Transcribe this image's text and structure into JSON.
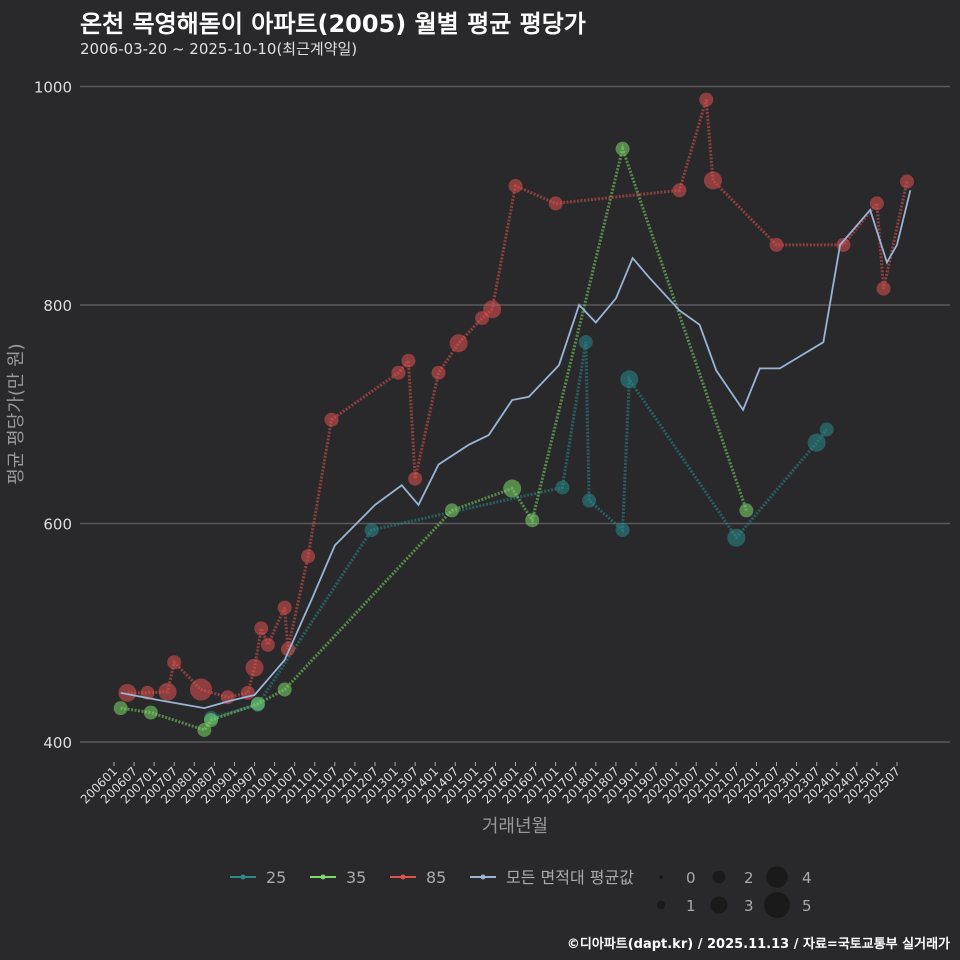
{
  "title": "온천 목영해돋이 아파트(2005) 월별 평균 평당가",
  "subtitle": "2006-03-20 ~ 2025-10-10(최근계약일)",
  "footer": "©디아파트(dapt.kr) / 2025.11.13 / 자료=국토교통부 실거래가",
  "chart_data": {
    "type": "line",
    "xlabel": "거래년월",
    "ylabel": "평균 평당가(만 원)",
    "ylim": [
      400,
      1000
    ],
    "yticks": [
      400,
      600,
      800,
      1000
    ],
    "x_start": "200601",
    "xticks": [
      "200601",
      "200607",
      "200701",
      "200707",
      "200801",
      "200807",
      "200901",
      "200907",
      "201001",
      "201007",
      "201101",
      "201107",
      "201201",
      "201207",
      "201301",
      "201307",
      "201401",
      "201407",
      "201501",
      "201507",
      "201601",
      "201607",
      "201701",
      "201707",
      "201801",
      "201807",
      "201901",
      "201907",
      "202001",
      "202007",
      "202101",
      "202107",
      "202201",
      "202207",
      "202301",
      "202307",
      "202401",
      "202407",
      "202501",
      "202507"
    ],
    "note": "points are [month index from 200601, value, trade count]",
    "series": [
      {
        "name": "25",
        "color": "#2a8a8c",
        "points": [
          [
            29,
            422,
            2
          ],
          [
            43,
            434,
            2
          ],
          [
            77,
            594,
            2
          ],
          [
            134,
            633,
            2
          ],
          [
            141,
            766,
            2
          ],
          [
            142,
            621,
            2
          ],
          [
            152,
            594,
            2
          ],
          [
            154,
            732,
            3
          ],
          [
            186,
            587,
            3
          ],
          [
            210,
            674,
            3
          ],
          [
            213,
            686,
            2
          ]
        ]
      },
      {
        "name": "35",
        "color": "#7ed96a",
        "points": [
          [
            2,
            431,
            2
          ],
          [
            11,
            427,
            2
          ],
          [
            27,
            411,
            2
          ],
          [
            29,
            420,
            2
          ],
          [
            43,
            435,
            2
          ],
          [
            51,
            448,
            2
          ],
          [
            101,
            612,
            2
          ],
          [
            119,
            632,
            3
          ],
          [
            125,
            603,
            2
          ],
          [
            152,
            943,
            2
          ],
          [
            189,
            612,
            2
          ]
        ]
      },
      {
        "name": "85",
        "color": "#e0514e",
        "points": [
          [
            4,
            445,
            3
          ],
          [
            10,
            445,
            2
          ],
          [
            16,
            446,
            3
          ],
          [
            18,
            473,
            2
          ],
          [
            26,
            448,
            4
          ],
          [
            34,
            441,
            2
          ],
          [
            40,
            445,
            2
          ],
          [
            42,
            468,
            3
          ],
          [
            44,
            504,
            2
          ],
          [
            46,
            489,
            2
          ],
          [
            51,
            523,
            2
          ],
          [
            52,
            485,
            2
          ],
          [
            58,
            570,
            2
          ],
          [
            65,
            695,
            2
          ],
          [
            85,
            738,
            2
          ],
          [
            88,
            749,
            2
          ],
          [
            90,
            641,
            2
          ],
          [
            97,
            738,
            2
          ],
          [
            103,
            765,
            3
          ],
          [
            110,
            788,
            2
          ],
          [
            113,
            796,
            3
          ],
          [
            120,
            909,
            2
          ],
          [
            132,
            893,
            2
          ],
          [
            169,
            905,
            2
          ],
          [
            177,
            988,
            2
          ],
          [
            179,
            914,
            3
          ],
          [
            198,
            855,
            2
          ],
          [
            218,
            855,
            2
          ],
          [
            228,
            893,
            2
          ],
          [
            230,
            815,
            2
          ],
          [
            237,
            913,
            2
          ]
        ]
      },
      {
        "name": "모든 면적대 평균값",
        "color": "#9ab4d6",
        "points": [
          [
            2,
            445
          ],
          [
            14,
            438
          ],
          [
            27,
            431
          ],
          [
            35,
            438
          ],
          [
            42,
            443
          ],
          [
            51,
            475
          ],
          [
            59,
            530
          ],
          [
            66,
            580
          ],
          [
            78,
            617
          ],
          [
            86,
            635
          ],
          [
            91,
            617
          ],
          [
            97,
            654
          ],
          [
            106,
            672
          ],
          [
            112,
            681
          ],
          [
            119,
            713
          ],
          [
            124,
            716
          ],
          [
            133,
            745
          ],
          [
            139,
            800
          ],
          [
            144,
            784
          ],
          [
            150,
            806
          ],
          [
            155,
            843
          ],
          [
            160,
            825
          ],
          [
            169,
            795
          ],
          [
            175,
            782
          ],
          [
            180,
            740
          ],
          [
            188,
            704
          ],
          [
            193,
            742
          ],
          [
            199,
            742
          ],
          [
            212,
            766
          ],
          [
            217,
            855
          ],
          [
            226,
            887
          ],
          [
            231,
            839
          ],
          [
            234,
            855
          ],
          [
            238,
            905
          ]
        ]
      }
    ],
    "size_legend": [
      "0",
      "1",
      "2",
      "3",
      "4",
      "5"
    ]
  }
}
